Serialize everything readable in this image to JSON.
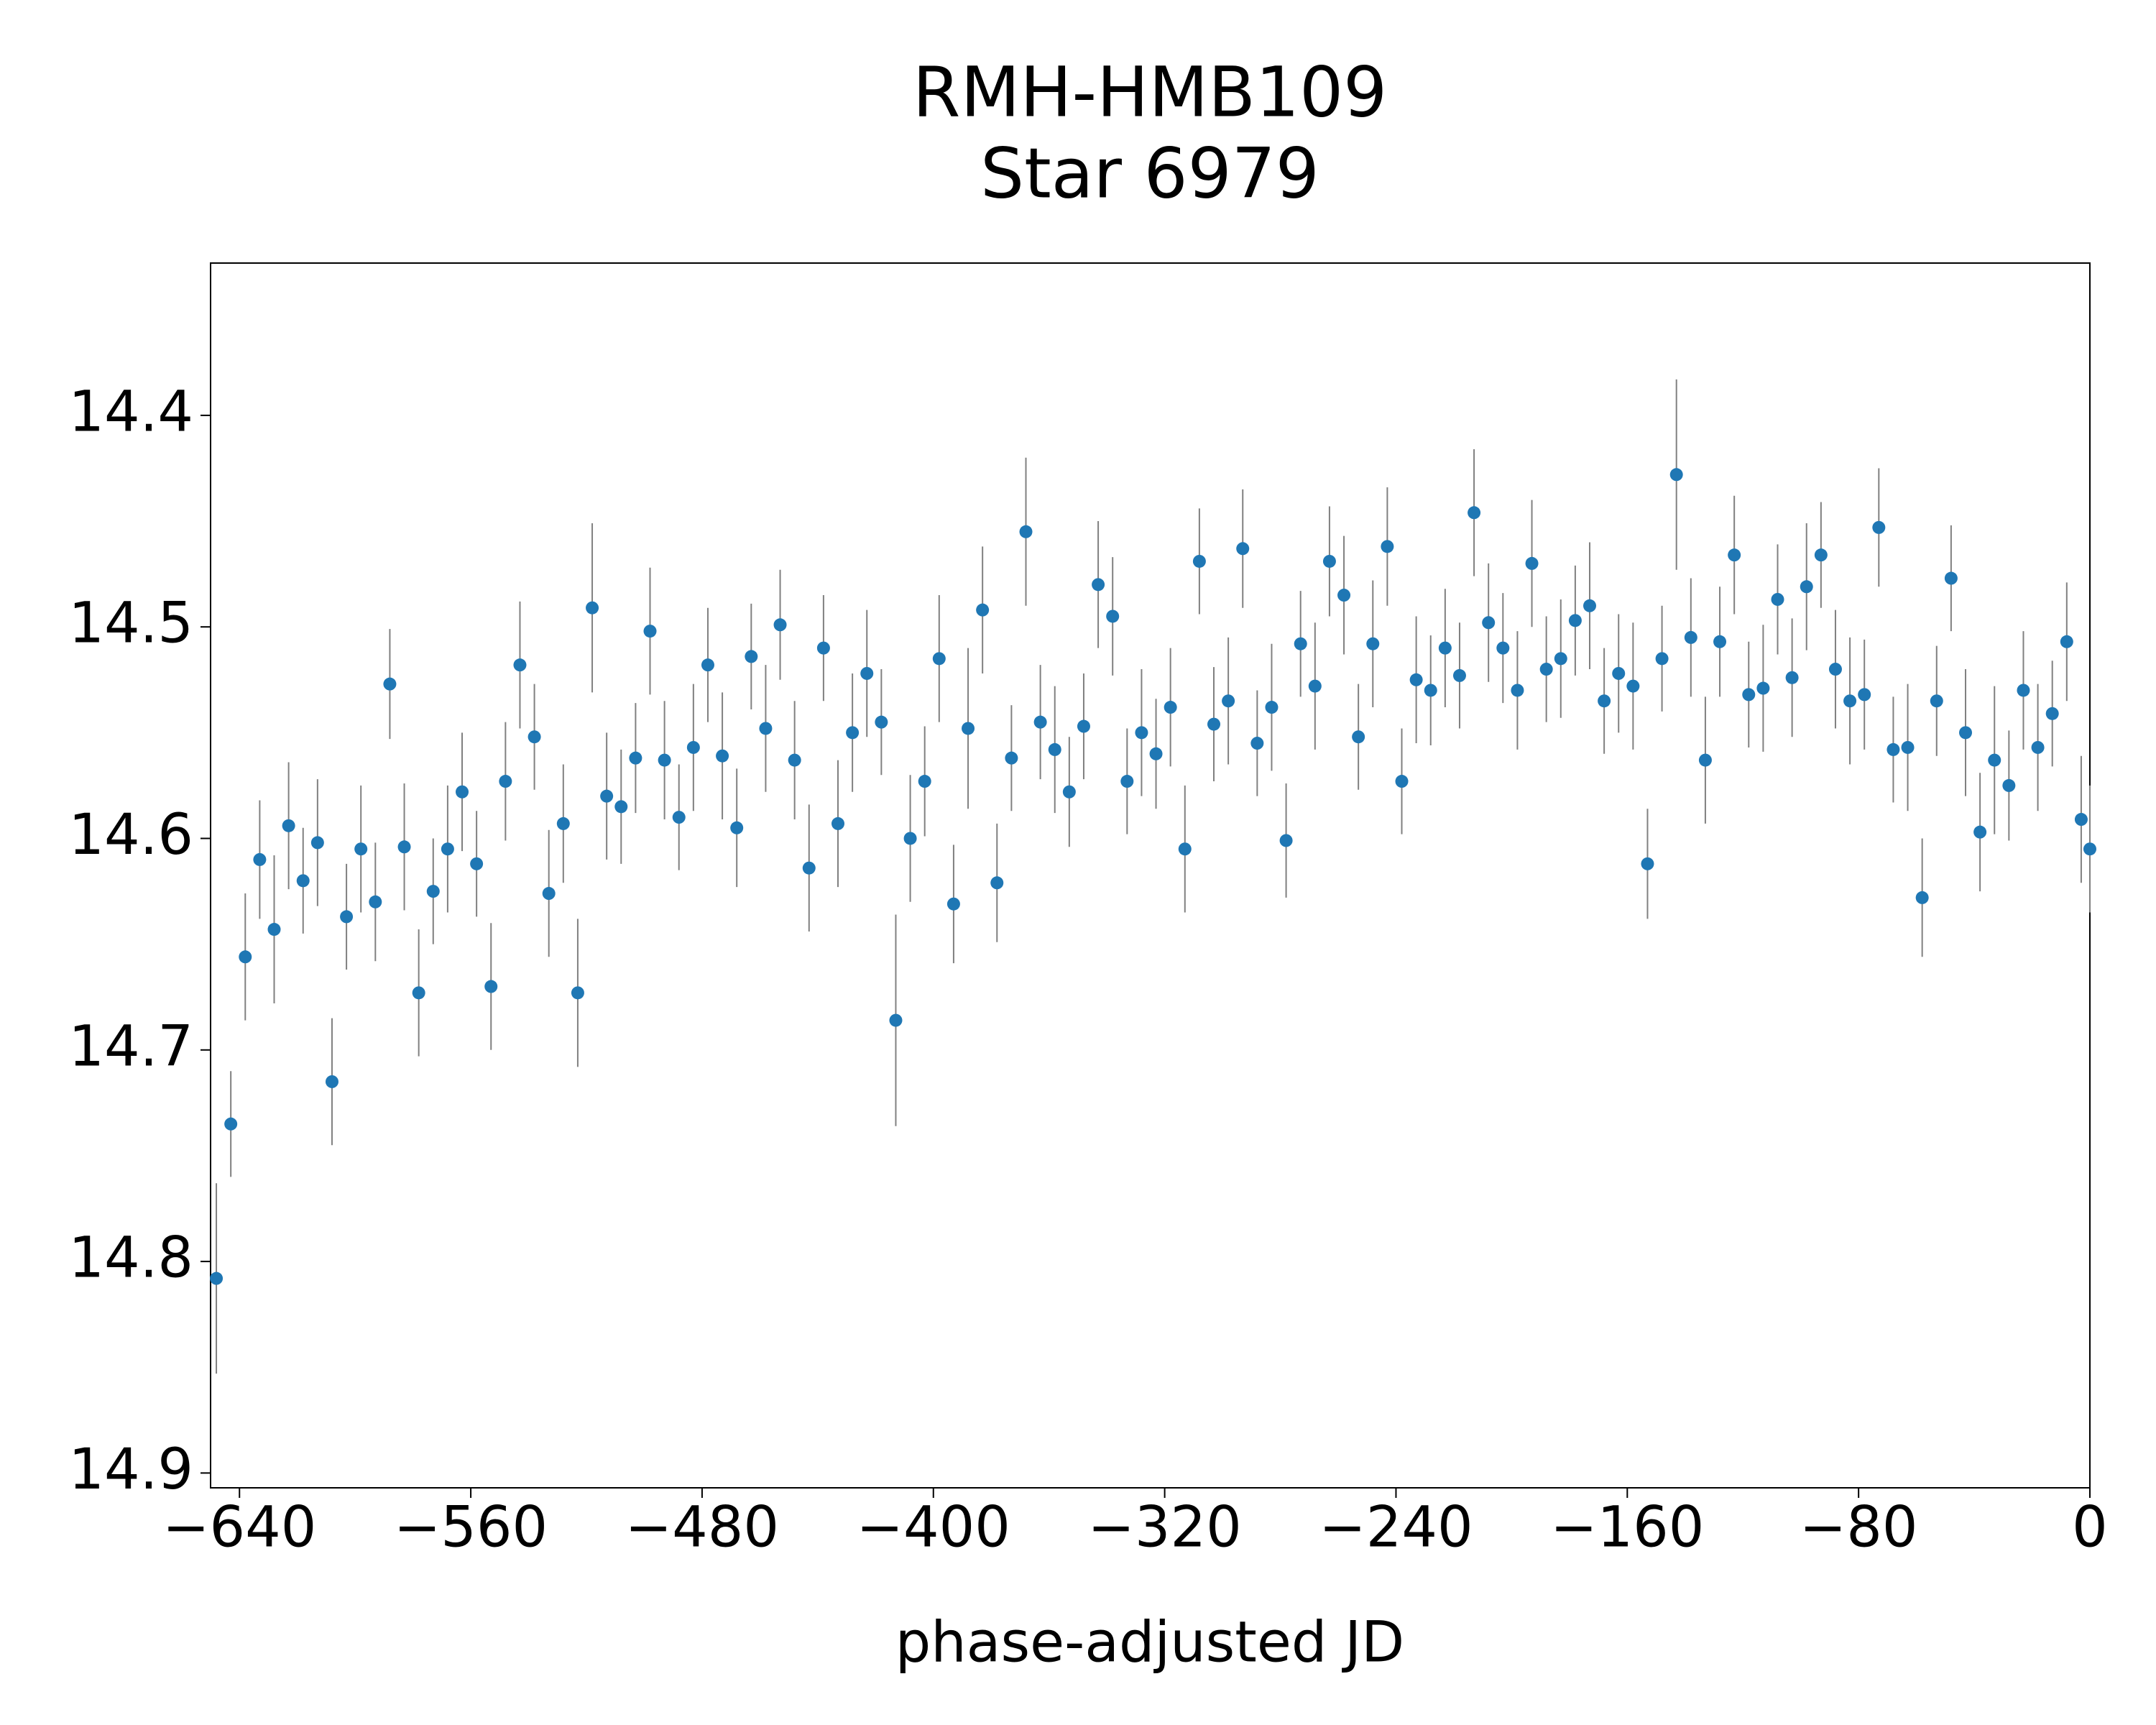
{
  "chart_data": {
    "type": "scatter",
    "title": "RMH-HMB109",
    "subtitle": "Star 6979",
    "x_label": "phase-adjusted JD",
    "xlim": [
      -650,
      0
    ],
    "ylim": [
      14.328,
      14.907
    ],
    "y_inverted": true,
    "grid": false,
    "xticks": [
      {
        "value": -640,
        "label": "−640"
      },
      {
        "value": -560,
        "label": "−560"
      },
      {
        "value": -480,
        "label": "−480"
      },
      {
        "value": -400,
        "label": "−400"
      },
      {
        "value": -320,
        "label": "−320"
      },
      {
        "value": -240,
        "label": "−240"
      },
      {
        "value": -160,
        "label": "−160"
      },
      {
        "value": -80,
        "label": "−80"
      },
      0
    ],
    "yticks": [
      14.4,
      14.5,
      14.6,
      14.7,
      14.8,
      14.9
    ],
    "series": [
      {
        "color": "#1f77b4",
        "error_color": "#808080",
        "x": [
          -648,
          -643,
          -638,
          -633,
          -628,
          -623,
          -618,
          -613,
          -608,
          -603,
          -598,
          -593,
          -588,
          -583,
          -578,
          -573,
          -568,
          -563,
          -558,
          -553,
          -548,
          -543,
          -538,
          -533,
          -528,
          -523,
          -518,
          -513,
          -508,
          -503,
          -498,
          -493,
          -488,
          -483,
          -478,
          -473,
          -468,
          -463,
          -458,
          -453,
          -448,
          -443,
          -438,
          -433,
          -428,
          -423,
          -418,
          -413,
          -408,
          -403,
          -398,
          -393,
          -388,
          -383,
          -378,
          -373,
          -368,
          -363,
          -358,
          -353,
          -348,
          -343,
          -338,
          -333,
          -328,
          -323,
          -318,
          -313,
          -308,
          -303,
          -298,
          -293,
          -288,
          -283,
          -278,
          -273,
          -268,
          -263,
          -258,
          -253,
          -248,
          -243,
          -238,
          -233,
          -228,
          -223,
          -218,
          -213,
          -208,
          -203,
          -198,
          -193,
          -188,
          -183,
          -178,
          -173,
          -168,
          -163,
          -158,
          -153,
          -148,
          -143,
          -138,
          -133,
          -128,
          -123,
          -118,
          -113,
          -108,
          -103,
          -98,
          -93,
          -88,
          -83,
          -78,
          -73,
          -68,
          -63,
          -58,
          -53,
          -48,
          -43,
          -38,
          -33,
          -28,
          -23,
          -18,
          -13,
          -8,
          -3,
          0
        ],
        "values": [
          14.808,
          14.735,
          14.656,
          14.61,
          14.643,
          14.594,
          14.62,
          14.602,
          14.715,
          14.637,
          14.605,
          14.63,
          14.527,
          14.604,
          14.673,
          14.625,
          14.605,
          14.578,
          14.612,
          14.67,
          14.573,
          14.518,
          14.552,
          14.626,
          14.593,
          14.673,
          14.491,
          14.58,
          14.585,
          14.562,
          14.502,
          14.563,
          14.59,
          14.557,
          14.518,
          14.561,
          14.595,
          14.514,
          14.548,
          14.499,
          14.563,
          14.614,
          14.51,
          14.593,
          14.55,
          14.522,
          14.545,
          14.686,
          14.6,
          14.573,
          14.515,
          14.631,
          14.548,
          14.492,
          14.621,
          14.562,
          14.455,
          14.545,
          14.558,
          14.578,
          14.547,
          14.48,
          14.495,
          14.573,
          14.55,
          14.56,
          14.538,
          14.605,
          14.469,
          14.546,
          14.535,
          14.463,
          14.555,
          14.538,
          14.601,
          14.508,
          14.528,
          14.469,
          14.485,
          14.552,
          14.508,
          14.462,
          14.573,
          14.525,
          14.53,
          14.51,
          14.523,
          14.446,
          14.498,
          14.51,
          14.53,
          14.47,
          14.52,
          14.515,
          14.497,
          14.49,
          14.535,
          14.522,
          14.528,
          14.612,
          14.515,
          14.428,
          14.505,
          14.563,
          14.507,
          14.466,
          14.532,
          14.529,
          14.487,
          14.524,
          14.481,
          14.466,
          14.52,
          14.535,
          14.532,
          14.453,
          14.558,
          14.557,
          14.628,
          14.535,
          14.477,
          14.55,
          14.597,
          14.563,
          14.575,
          14.53,
          14.557,
          14.541,
          14.507,
          14.591,
          14.605
        ],
        "errors": [
          0.045,
          0.025,
          0.03,
          0.028,
          0.035,
          0.03,
          0.025,
          0.03,
          0.03,
          0.025,
          0.03,
          0.028,
          0.026,
          0.03,
          0.03,
          0.025,
          0.03,
          0.028,
          0.025,
          0.03,
          0.028,
          0.03,
          0.025,
          0.03,
          0.028,
          0.035,
          0.04,
          0.03,
          0.027,
          0.026,
          0.03,
          0.028,
          0.025,
          0.03,
          0.027,
          0.03,
          0.028,
          0.025,
          0.03,
          0.026,
          0.028,
          0.03,
          0.025,
          0.03,
          0.028,
          0.03,
          0.025,
          0.05,
          0.03,
          0.026,
          0.03,
          0.028,
          0.038,
          0.03,
          0.028,
          0.025,
          0.035,
          0.027,
          0.03,
          0.026,
          0.025,
          0.03,
          0.028,
          0.025,
          0.03,
          0.026,
          0.028,
          0.03,
          0.025,
          0.027,
          0.03,
          0.028,
          0.025,
          0.03,
          0.027,
          0.025,
          0.03,
          0.026,
          0.028,
          0.025,
          0.03,
          0.028,
          0.025,
          0.03,
          0.026,
          0.028,
          0.025,
          0.03,
          0.028,
          0.026,
          0.028,
          0.03,
          0.025,
          0.028,
          0.026,
          0.03,
          0.025,
          0.028,
          0.03,
          0.026,
          0.025,
          0.045,
          0.028,
          0.03,
          0.026,
          0.028,
          0.025,
          0.03,
          0.026,
          0.028,
          0.03,
          0.025,
          0.028,
          0.03,
          0.026,
          0.028,
          0.025,
          0.03,
          0.028,
          0.026,
          0.025,
          0.03,
          0.028,
          0.035,
          0.026,
          0.028,
          0.03,
          0.025,
          0.028,
          0.03,
          0.03
        ]
      }
    ]
  }
}
